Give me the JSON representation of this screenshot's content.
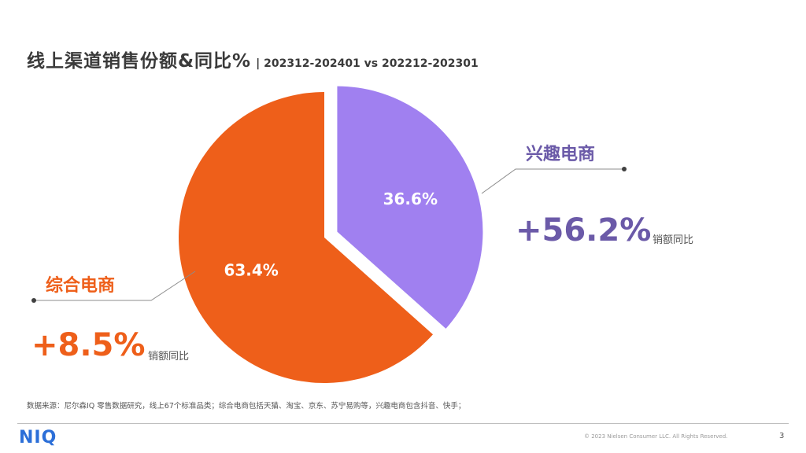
{
  "title": {
    "main": "线上渠道销售份额&同比%",
    "sub": "| 202312-202401  vs 202212-202301"
  },
  "chart_data": {
    "type": "pie",
    "categories": [
      "兴趣电商",
      "综合电商"
    ],
    "values": [
      36.6,
      63.4
    ],
    "value_labels": [
      "36.6%",
      "63.4%"
    ],
    "colors": [
      "#A080F0",
      "#EE5F1A"
    ],
    "exploded": "兴趣电商",
    "annotations": [
      {
        "category": "兴趣电商",
        "growth": "+56.2%",
        "growth_label": "销额同比",
        "color": "#6B5AA8"
      },
      {
        "category": "综合电商",
        "growth": "+8.5%",
        "growth_label": "销额同比",
        "color": "#EE5F1A"
      }
    ]
  },
  "footnote": "数据来源：尼尔森IQ 零售数据研究，线上67个标准品类；综合电商包括天猫、淘宝、京东、苏宁易购等，兴趣电商包含抖音、快手；",
  "footer": {
    "logo": "NIQ",
    "copyright": "© 2023 Nielsen Consumer LLC. All Rights Reserved.",
    "page": "3"
  }
}
